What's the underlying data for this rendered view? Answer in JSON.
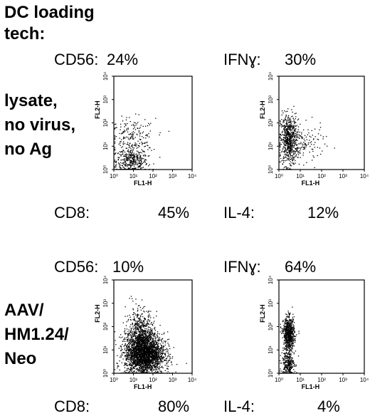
{
  "header": {
    "line1": "DC loading",
    "line2": "tech:"
  },
  "rows": [
    {
      "name_lines": [
        "lysate,",
        "no virus,",
        "no Ag"
      ],
      "left_top_label": "CD56:",
      "left_top_value": "24%",
      "right_top_label": "IFNɣ:",
      "right_top_value": "30%",
      "left_bottom_label": "CD8:",
      "left_bottom_value": "45%",
      "right_bottom_label": "IL-4:",
      "right_bottom_value": "12%"
    },
    {
      "name_lines": [
        "AAV/",
        "HM1.24/",
        "Neo"
      ],
      "left_top_label": "CD56:",
      "left_top_value": "10%",
      "right_top_label": "IFNɣ:",
      "right_top_value": "64%",
      "left_bottom_label": "CD8:",
      "left_bottom_value": "80%",
      "right_bottom_label": "IL-4:",
      "right_bottom_value": "4%"
    }
  ],
  "chart_data": [
    {
      "type": "scatter",
      "panel": "lysate-cd56-cd8",
      "xlabel": "FL1-H",
      "ylabel": "FL2-H",
      "xscale": "log",
      "yscale": "log",
      "xlim": [
        1,
        10000
      ],
      "ylim": [
        1,
        10000
      ],
      "xticks": [
        "10⁰",
        "10¹",
        "10²",
        "10³",
        "10⁴"
      ],
      "yticks": [
        "10⁰",
        "10¹",
        "10²",
        "10³",
        "10⁴"
      ],
      "clusters": [
        {
          "x_log": 0.9,
          "y_log": 0.35,
          "sx": 0.4,
          "sy": 0.3,
          "n": 380
        },
        {
          "x_log": 0.9,
          "y_log": 1.3,
          "sx": 0.6,
          "sy": 0.45,
          "n": 220
        }
      ]
    },
    {
      "type": "scatter",
      "panel": "lysate-ifng-il4",
      "xlabel": "FL1-H",
      "ylabel": "FL2-H",
      "xscale": "log",
      "yscale": "log",
      "xlim": [
        1,
        10000
      ],
      "ylim": [
        1,
        10000
      ],
      "xticks": [
        "10⁰",
        "10¹",
        "10²",
        "10³",
        "10⁴"
      ],
      "yticks": [
        "10⁰",
        "10¹",
        "10²",
        "10³",
        "10⁴"
      ],
      "clusters": [
        {
          "x_log": 0.45,
          "y_log": 1.3,
          "sx": 0.2,
          "sy": 0.55,
          "n": 650
        },
        {
          "x_log": 1.1,
          "y_log": 1.1,
          "sx": 0.5,
          "sy": 0.4,
          "n": 150
        }
      ]
    },
    {
      "type": "scatter",
      "panel": "aav-cd56-cd8",
      "xlabel": "FL1-H",
      "ylabel": "FL2-H",
      "xscale": "log",
      "yscale": "log",
      "xlim": [
        1,
        10000
      ],
      "ylim": [
        1,
        10000
      ],
      "xticks": [
        "10⁰",
        "10¹",
        "10²",
        "10³",
        "10⁴"
      ],
      "yticks": [
        "10⁰",
        "10¹",
        "10²",
        "10³",
        "10⁴"
      ],
      "clusters": [
        {
          "x_log": 1.55,
          "y_log": 0.85,
          "sx": 0.5,
          "sy": 0.45,
          "n": 2600
        },
        {
          "x_log": 1.3,
          "y_log": 1.8,
          "sx": 0.35,
          "sy": 0.5,
          "n": 500
        }
      ]
    },
    {
      "type": "scatter",
      "panel": "aav-ifng-il4",
      "xlabel": "FL1-H",
      "ylabel": "FL2-H",
      "xscale": "log",
      "yscale": "log",
      "xlim": [
        1,
        10000
      ],
      "ylim": [
        1,
        10000
      ],
      "xticks": [
        "10⁰",
        "10¹",
        "10²",
        "10³",
        "10⁴"
      ],
      "yticks": [
        "10⁰",
        "10¹",
        "10²",
        "10³",
        "10⁴"
      ],
      "clusters": [
        {
          "x_log": 0.45,
          "y_log": 1.7,
          "sx": 0.13,
          "sy": 0.35,
          "n": 700
        },
        {
          "x_log": 0.4,
          "y_log": 0.4,
          "sx": 0.15,
          "sy": 0.3,
          "n": 300
        }
      ]
    }
  ]
}
